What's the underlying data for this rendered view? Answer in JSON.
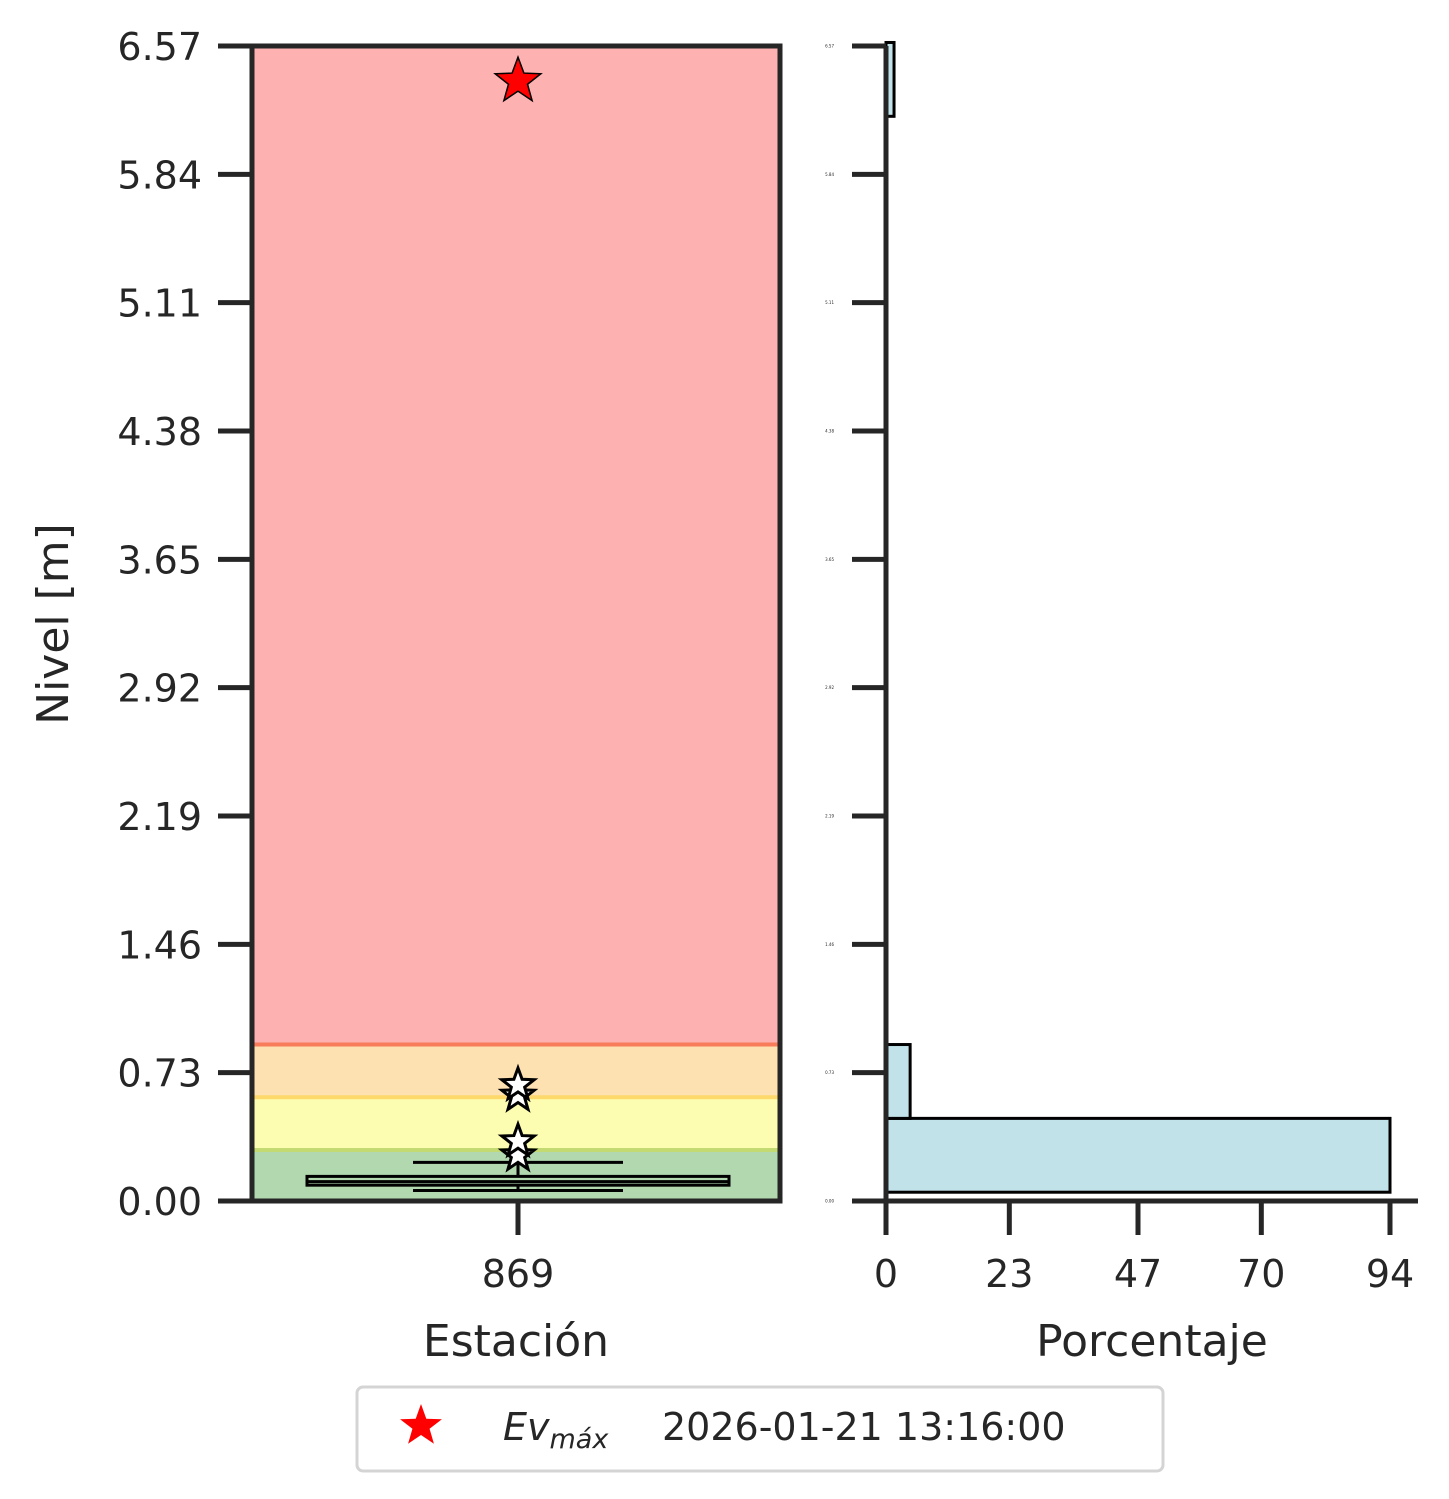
{
  "colors": {
    "axis": "#262626",
    "hist_fill": "#c2e2ea",
    "event_star": "#ff0000",
    "zone_green": "#b2d8b0",
    "zone_yellow": "#fdfdb1",
    "zone_orange": "#fee1b0",
    "zone_red": "#feb1b1",
    "line_green": "#c3d971",
    "line_yellow": "#fdd86b",
    "line_orange": "#f87c5a"
  },
  "chart_data": [
    {
      "type": "box",
      "xlabel": "Estación",
      "ylabel": "Nivel [m]",
      "categories": [
        "869"
      ],
      "yticks": [
        "0.00",
        "0.73",
        "1.46",
        "2.19",
        "2.92",
        "3.65",
        "4.38",
        "5.11",
        "5.84",
        "6.57"
      ],
      "ylim": [
        0,
        6.57
      ],
      "thresholds": [
        {
          "zone": "green",
          "from": 0,
          "to": 0.29
        },
        {
          "zone": "yellow",
          "from": 0.29,
          "to": 0.59
        },
        {
          "zone": "orange",
          "from": 0.59,
          "to": 0.89
        },
        {
          "zone": "red",
          "from": 0.89,
          "to": 6.57
        }
      ],
      "box": {
        "category": "869",
        "whisker_low": 0.06,
        "q1": 0.09,
        "median": 0.11,
        "q3": 0.14,
        "whisker_high": 0.22
      },
      "outliers": [
        0.26,
        0.34,
        0.6,
        0.66
      ],
      "max_event": {
        "value": 6.37,
        "marker": "star"
      }
    },
    {
      "type": "bar",
      "orientation": "horizontal",
      "xlabel": "Porcentaje",
      "xticks": [
        "0",
        "23",
        "47",
        "70",
        "94"
      ],
      "xlim": [
        0,
        94
      ],
      "yticks": [
        "0.00",
        "0.73",
        "1.46",
        "2.19",
        "2.92",
        "3.65",
        "4.38",
        "5.11",
        "5.84",
        "6.57"
      ],
      "ylim": [
        0,
        6.57
      ],
      "bins": [
        {
          "from": 0.05,
          "to": 0.47,
          "value": 94
        },
        {
          "from": 0.47,
          "to": 0.89,
          "value": 4.5
        },
        {
          "from": 6.17,
          "to": 6.59,
          "value": 1.5
        }
      ]
    }
  ],
  "legend": {
    "label": "Ev",
    "subscript": "máx",
    "datetime": "2026-01-21 13:16:00"
  }
}
